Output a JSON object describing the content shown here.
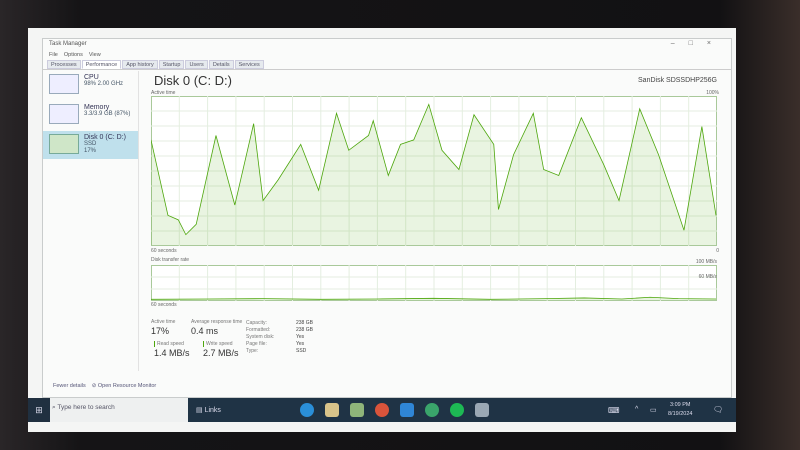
{
  "window": {
    "title": "Task Manager",
    "controls": [
      "–",
      "□",
      "×"
    ]
  },
  "menu": [
    "File",
    "Options",
    "View"
  ],
  "tabs": [
    "Processes",
    "Performance",
    "App history",
    "Startup",
    "Users",
    "Details",
    "Services"
  ],
  "active_tab": "Performance",
  "sidebar": {
    "items": [
      {
        "name": "CPU",
        "detail": "98% 2.00 GHz"
      },
      {
        "name": "Memory",
        "detail": "3.3/3.9 GB (87%)"
      },
      {
        "name": "Disk 0 (C: D:)",
        "detail": "SSD",
        "detail2": "17%",
        "selected": true
      }
    ]
  },
  "main": {
    "title": "Disk 0 (C: D:)",
    "model": "SanDisk SDSSDHP256G",
    "active_label": "Active time",
    "active_max": "100%",
    "seconds_label": "60 seconds",
    "zero": "0",
    "transfer_label": "Disk transfer rate",
    "transfer_max": "100 MB/s",
    "transfer_mid": "60 MB/s",
    "transfer_seconds": "60 seconds",
    "active_time_series": [
      [
        0,
        71
      ],
      [
        1.8,
        20
      ],
      [
        2.9,
        17
      ],
      [
        3.7,
        7
      ],
      [
        4.8,
        14
      ],
      [
        6.9,
        74
      ],
      [
        8.9,
        27
      ],
      [
        10.9,
        82
      ],
      [
        11.9,
        30
      ],
      [
        13.5,
        44
      ],
      [
        15.9,
        68
      ],
      [
        17.8,
        37
      ],
      [
        19.7,
        89
      ],
      [
        21,
        64
      ],
      [
        23.1,
        74
      ],
      [
        23.6,
        84
      ],
      [
        25.2,
        47
      ],
      [
        26.5,
        68
      ],
      [
        27.9,
        71
      ],
      [
        29.5,
        95
      ],
      [
        30.9,
        64
      ],
      [
        32.7,
        51
      ],
      [
        34.3,
        88
      ],
      [
        36.4,
        68
      ],
      [
        36.9,
        24
      ],
      [
        38.5,
        61
      ],
      [
        40.6,
        89
      ],
      [
        41.7,
        51
      ],
      [
        43.3,
        47
      ],
      [
        45.7,
        86
      ],
      [
        48.1,
        54
      ],
      [
        49.7,
        30
      ],
      [
        51.9,
        92
      ],
      [
        53.9,
        61
      ],
      [
        56.6,
        10
      ],
      [
        58.5,
        80
      ],
      [
        60,
        20
      ]
    ],
    "transfer_series": [
      [
        0,
        2
      ],
      [
        6,
        3
      ],
      [
        12,
        4
      ],
      [
        18,
        2
      ],
      [
        24,
        3
      ],
      [
        30,
        5
      ],
      [
        36,
        2
      ],
      [
        42,
        4
      ],
      [
        46,
        6
      ],
      [
        50,
        3
      ],
      [
        53,
        8
      ],
      [
        56,
        4
      ],
      [
        60,
        3
      ]
    ],
    "accent": "#4da60c"
  },
  "stats": {
    "active_time": {
      "label": "Active time",
      "value": "17%"
    },
    "response": {
      "label": "Average response time",
      "value": "0.4 ms"
    },
    "read": {
      "label": "Read speed",
      "value": "1.4 MB/s"
    },
    "write": {
      "label": "Write speed",
      "value": "2.7 MB/s"
    },
    "props": [
      [
        "Capacity:",
        "238 GB"
      ],
      [
        "Formatted:",
        "238 GB"
      ],
      [
        "System disk:",
        "Yes"
      ],
      [
        "Page file:",
        "Yes"
      ],
      [
        "Type:",
        "SSD"
      ]
    ]
  },
  "footer": {
    "fewer": "Fewer details",
    "monitor": "Open Resource Monitor"
  },
  "taskbar": {
    "search": "Type here to search",
    "widget": "Links",
    "time": "3:09 PM",
    "date": "8/19/2024"
  }
}
